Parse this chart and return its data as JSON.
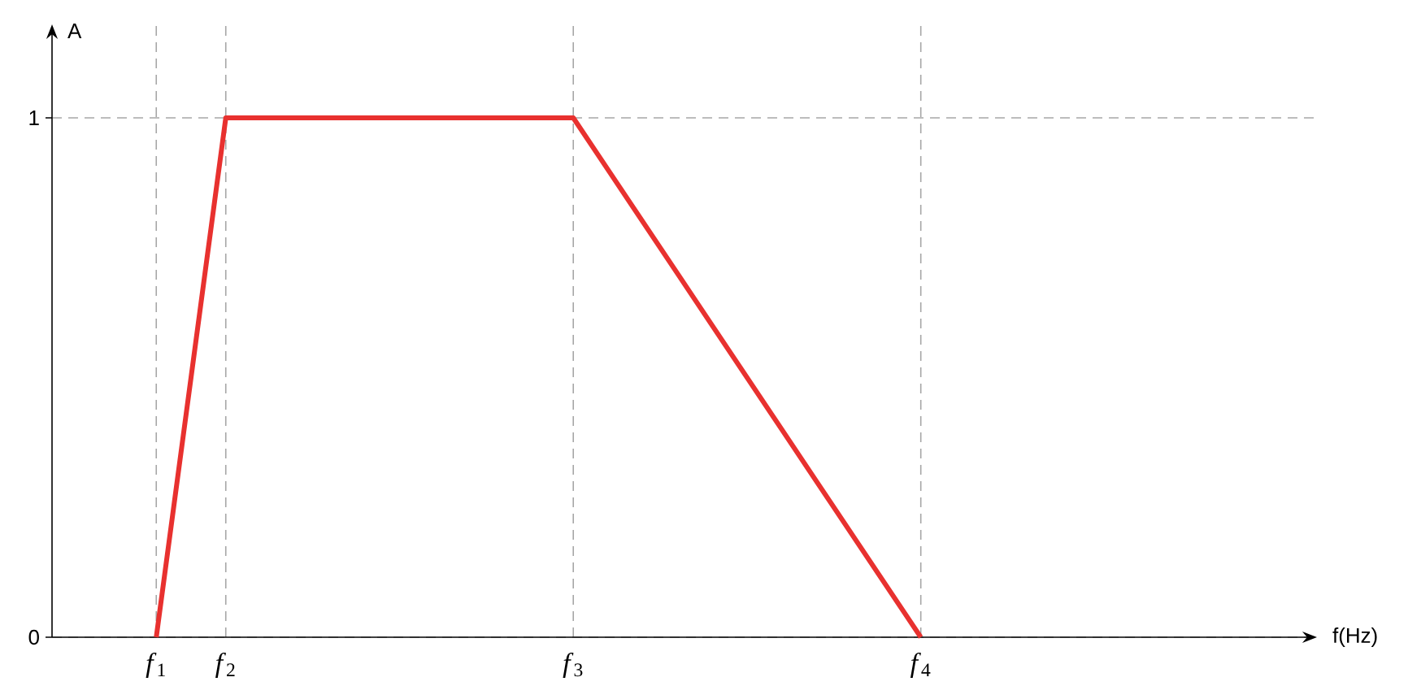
{
  "chart_data": {
    "type": "line",
    "xlabel": "f(Hz)",
    "ylabel": "A",
    "categories": [
      null,
      null,
      null,
      "*f*$_{1}$",
      null,
      "*f*$_{2}$",
      null,
      null,
      null,
      null,
      null,
      null,
      null,
      null,
      null,
      "*f*$_{3}$",
      null,
      null,
      null,
      null,
      null,
      null,
      null,
      null,
      null,
      "*f*$_{4}$",
      null,
      null,
      null,
      null,
      null,
      null,
      null,
      null,
      null,
      null,
      null
    ],
    "series": [
      {
        "color": "#e8312f",
        "values": [
          null,
          null,
          null,
          0,
          0.5,
          1,
          1,
          1,
          1,
          1,
          1,
          1,
          1,
          1,
          1,
          1,
          0.9,
          0.8,
          0.7,
          0.6,
          0.5,
          0.4,
          0.3,
          0.2,
          0.1,
          0,
          null,
          null,
          null,
          null,
          null,
          null,
          null,
          null,
          null,
          null,
          null
        ]
      }
    ],
    "ylim": [
      0,
      1.18
    ],
    "yticks": [
      0,
      1
    ],
    "grid": true,
    "marker": "none",
    "line_style": "solid"
  }
}
